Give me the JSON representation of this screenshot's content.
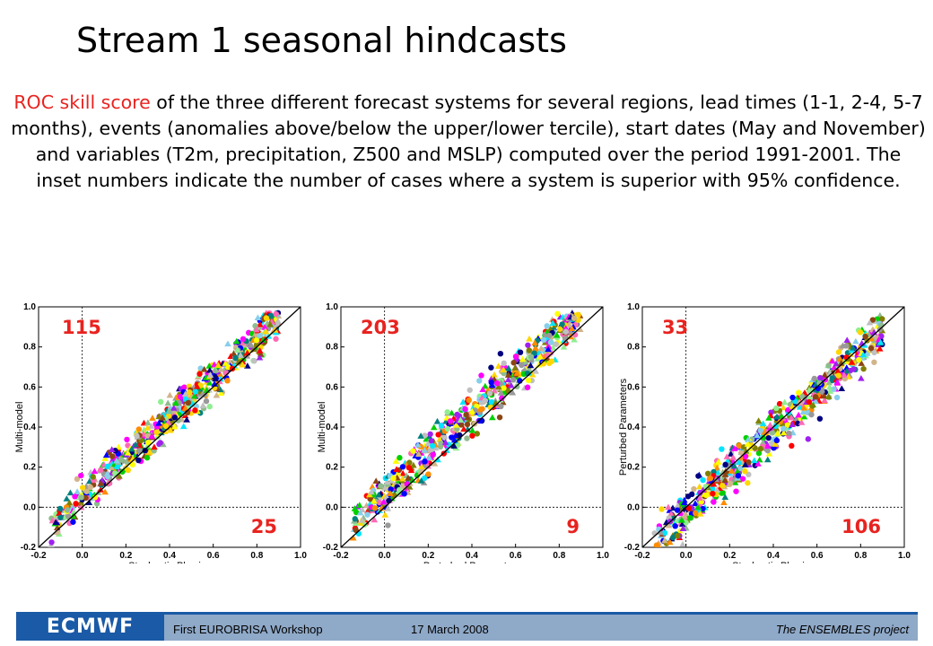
{
  "slide": {
    "title": "Stream 1 seasonal hindcasts",
    "caption_highlight": "ROC skill score",
    "caption_rest": " of the three different forecast systems for several regions, lead times (1-1, 2-4, 5-7 months), events (anomalies above/below the upper/lower tercile), start dates (May and November) and variables (T2m, precipitation, Z500 and MSLP) computed over the period 1991-2001. The inset numbers indicate the number of cases where a system is superior with 95% confidence."
  },
  "chart_data": [
    {
      "type": "scatter",
      "xlabel": "Stochastic Physics",
      "ylabel": "Multi-model",
      "xlim": [
        -0.2,
        1.0
      ],
      "ylim": [
        -0.2,
        1.0
      ],
      "xticks": [
        "-0.2",
        "0.0",
        "0.2",
        "0.4",
        "0.6",
        "0.8",
        "1.0"
      ],
      "yticks": [
        "-0.2",
        "0.0",
        "0.2",
        "0.4",
        "0.6",
        "0.8",
        "1.0"
      ],
      "count_upper": "115",
      "count_lower": "25",
      "spread": 0.08,
      "bias": 0.05,
      "seed": 11,
      "n_points": 620
    },
    {
      "type": "scatter",
      "xlabel": "Perturbed Parameters",
      "ylabel": "Multi-model",
      "xlim": [
        -0.2,
        1.0
      ],
      "ylim": [
        -0.2,
        1.0
      ],
      "xticks": [
        "-0.2",
        "0.0",
        "0.2",
        "0.4",
        "0.6",
        "0.8",
        "1.0"
      ],
      "yticks": [
        "-0.2",
        "0.0",
        "0.2",
        "0.4",
        "0.6",
        "0.8",
        "1.0"
      ],
      "count_upper": "203",
      "count_lower": "9",
      "spread": 0.1,
      "bias": 0.08,
      "seed": 23,
      "n_points": 620
    },
    {
      "type": "scatter",
      "xlabel": "Stochastic Physics",
      "ylabel": "Perturbed Parameters",
      "xlim": [
        -0.2,
        1.0
      ],
      "ylim": [
        -0.2,
        1.0
      ],
      "xticks": [
        "-0.2",
        "0.0",
        "0.2",
        "0.4",
        "0.6",
        "0.8",
        "1.0"
      ],
      "yticks": [
        "-0.2",
        "0.0",
        "0.2",
        "0.4",
        "0.6",
        "0.8",
        "1.0"
      ],
      "count_upper": "33",
      "count_lower": "106",
      "spread": 0.11,
      "bias": -0.02,
      "seed": 37,
      "n_points": 620
    }
  ],
  "marker_colors": [
    "#ff0000",
    "#00d000",
    "#0000ff",
    "#ffff00",
    "#ff00ff",
    "#00e5ff",
    "#ff8c00",
    "#000080",
    "#8b4513",
    "#c0c0c0",
    "#a020f0",
    "#ff69b4",
    "#90ee90",
    "#808000",
    "#008080",
    "#d2b48c",
    "#8fbc8f",
    "#ffd700",
    "#87ceeb",
    "#999999"
  ],
  "footer": {
    "logo": "ECMWF",
    "left": "First EUROBRISA Workshop",
    "middle": "17 March 2008",
    "right": "The ENSEMBLES project"
  }
}
